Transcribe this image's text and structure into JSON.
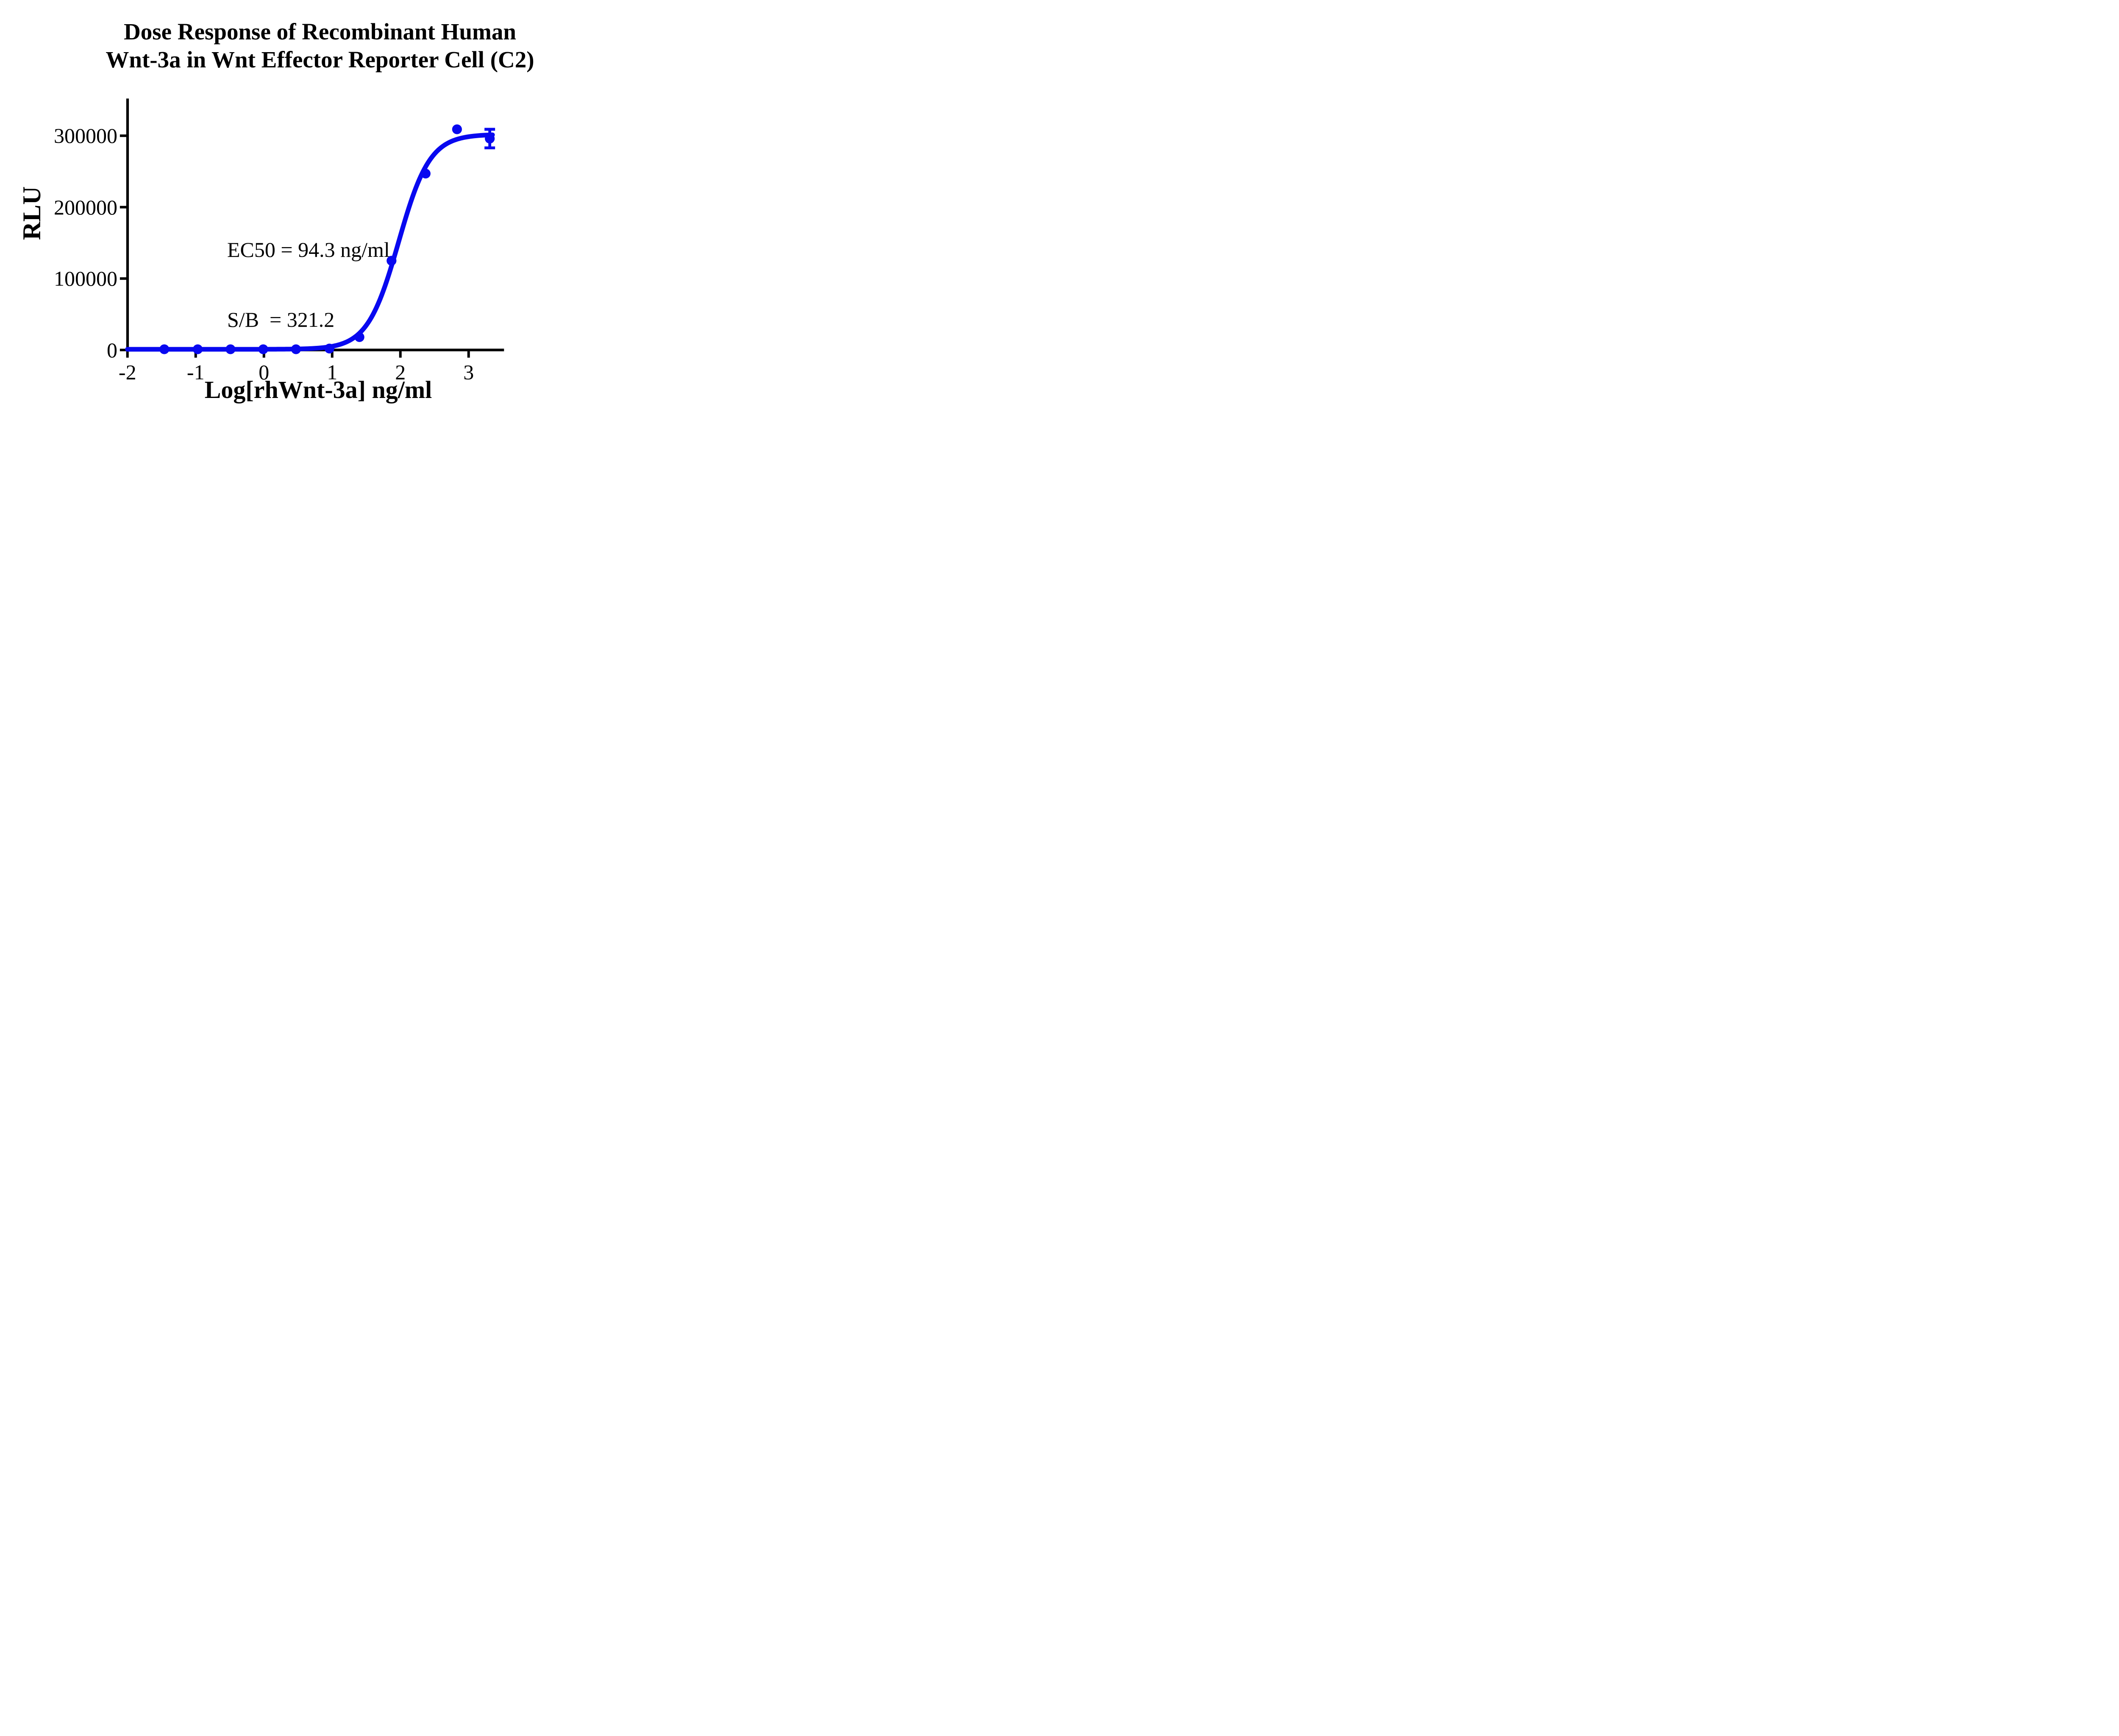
{
  "figure": {
    "title_line1": "Dose Response of Recombinant Human",
    "title_line2": "Wnt-3a in Wnt Effector Reporter Cell (C2)"
  },
  "chart_data": {
    "type": "scatter",
    "title": "Dose Response of Recombinant Human Wnt-3a in Wnt Effector Reporter Cell (C2)",
    "xlabel": "Log[rhWnt-3a] ng/ml",
    "ylabel": "RLU",
    "x_ticks": [
      -2,
      -1,
      0,
      1,
      2,
      3
    ],
    "y_ticks": [
      0,
      100000,
      200000,
      300000
    ],
    "xlim": [
      -2,
      3.52
    ],
    "ylim": [
      0,
      352000
    ],
    "grid": false,
    "legend": "none",
    "accent_color": "#0808f0",
    "axis_color": "#000000",
    "points": {
      "x_log": [
        -1.46,
        -0.97,
        -0.49,
        -0.01,
        0.47,
        0.96,
        1.4,
        1.87,
        2.37,
        2.83,
        3.31
      ],
      "y_rlu": [
        1000,
        1000,
        1000,
        1000,
        1000,
        2000,
        18000,
        125000,
        247000,
        309000,
        296000
      ],
      "y_sem": [
        0,
        0,
        0,
        0,
        0,
        0,
        0,
        0,
        0,
        0,
        13000
      ]
    },
    "curve_fit": {
      "model": "4PL",
      "bottom": 950,
      "top": 302000,
      "log_ec50": 1.9746,
      "hill": 1.9,
      "x_start": -2,
      "x_end": 3.35
    },
    "ec50_label": "EC50 = 94.3 ng/ml",
    "sb_label": "S/B  = 321.2",
    "ec50_ng_ml": 94.3,
    "s_over_b": 321.2
  }
}
